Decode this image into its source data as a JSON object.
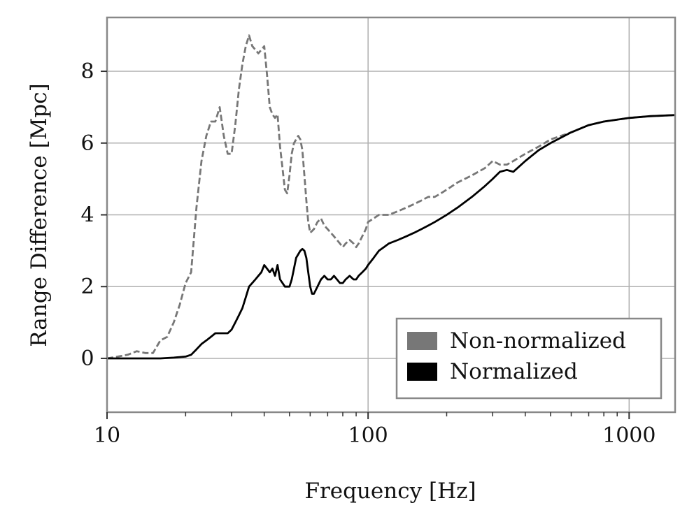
{
  "chart_data": {
    "type": "line",
    "xlabel": "Frequency [Hz]",
    "ylabel": "Range Difference [Mpc]",
    "xscale": "log",
    "xlim": [
      10,
      1500
    ],
    "ylim": [
      -1.5,
      9.5
    ],
    "xticks": [
      10,
      100,
      1000
    ],
    "xtick_labels": [
      "10",
      "100",
      "1000"
    ],
    "yticks": [
      0,
      2,
      4,
      6,
      8
    ],
    "ytick_labels": [
      "0",
      "2",
      "4",
      "6",
      "8"
    ],
    "grid": true,
    "legend_position": "lower-right",
    "series": [
      {
        "name": "Non-normalized",
        "color": "#777777",
        "style": "dashed",
        "x": [
          10,
          11,
          12,
          13,
          14,
          15,
          16,
          17,
          18,
          19,
          20,
          21,
          22,
          23,
          24,
          25,
          26,
          27,
          28,
          29,
          30,
          31,
          32,
          33,
          34,
          35,
          36,
          37,
          38,
          39,
          40,
          41,
          42,
          43,
          44,
          45,
          46,
          47,
          48,
          49,
          50,
          51,
          52,
          53,
          54,
          55,
          56,
          57,
          58,
          59,
          60,
          62,
          64,
          66,
          68,
          70,
          72,
          74,
          76,
          78,
          80,
          82,
          85,
          88,
          90,
          92,
          95,
          98,
          100,
          105,
          110,
          115,
          120,
          130,
          140,
          150,
          160,
          170,
          180,
          190,
          200,
          220,
          250,
          280,
          300,
          320,
          340,
          360,
          400,
          450,
          500,
          600,
          700,
          800,
          1000,
          1200,
          1500
        ],
        "y": [
          0.0,
          0.05,
          0.1,
          0.2,
          0.15,
          0.15,
          0.5,
          0.6,
          1.0,
          1.5,
          2.1,
          2.4,
          4.2,
          5.5,
          6.2,
          6.6,
          6.6,
          7.0,
          6.2,
          5.7,
          5.7,
          6.5,
          7.5,
          8.2,
          8.7,
          9.0,
          8.7,
          8.6,
          8.5,
          8.6,
          8.7,
          7.9,
          7.0,
          6.8,
          6.7,
          6.8,
          5.9,
          5.3,
          4.7,
          4.6,
          5.1,
          5.7,
          6.0,
          6.1,
          6.2,
          6.1,
          5.8,
          5.1,
          4.4,
          3.8,
          3.5,
          3.6,
          3.8,
          3.9,
          3.7,
          3.6,
          3.5,
          3.4,
          3.3,
          3.2,
          3.1,
          3.2,
          3.3,
          3.2,
          3.1,
          3.2,
          3.4,
          3.6,
          3.8,
          3.9,
          4.0,
          4.0,
          4.0,
          4.1,
          4.2,
          4.3,
          4.4,
          4.5,
          4.5,
          4.6,
          4.7,
          4.9,
          5.1,
          5.3,
          5.5,
          5.4,
          5.4,
          5.5,
          5.7,
          5.9,
          6.1,
          6.3,
          6.5,
          6.6,
          6.7,
          6.75,
          6.78
        ]
      },
      {
        "name": "Normalized",
        "color": "#000000",
        "style": "solid",
        "x": [
          10,
          12,
          14,
          16,
          18,
          20,
          21,
          22,
          23,
          24,
          25,
          26,
          27,
          28,
          29,
          30,
          31,
          32,
          33,
          34,
          35,
          36,
          37,
          38,
          39,
          40,
          41,
          42,
          43,
          44,
          45,
          46,
          47,
          48,
          49,
          50,
          51,
          52,
          53,
          54,
          55,
          56,
          57,
          58,
          59,
          60,
          61,
          62,
          64,
          66,
          68,
          70,
          72,
          74,
          76,
          78,
          80,
          82,
          85,
          88,
          90,
          92,
          95,
          98,
          100,
          105,
          110,
          115,
          120,
          130,
          140,
          150,
          160,
          170,
          180,
          190,
          200,
          220,
          250,
          280,
          300,
          320,
          340,
          360,
          400,
          450,
          500,
          600,
          700,
          800,
          1000,
          1200,
          1500
        ],
        "y": [
          0.0,
          0.0,
          0.0,
          0.0,
          0.02,
          0.05,
          0.1,
          0.25,
          0.4,
          0.5,
          0.6,
          0.7,
          0.7,
          0.7,
          0.7,
          0.8,
          1.0,
          1.2,
          1.4,
          1.7,
          2.0,
          2.1,
          2.2,
          2.3,
          2.4,
          2.6,
          2.5,
          2.4,
          2.5,
          2.3,
          2.6,
          2.2,
          2.1,
          2.0,
          2.0,
          2.0,
          2.2,
          2.5,
          2.8,
          2.9,
          3.0,
          3.05,
          3.0,
          2.8,
          2.4,
          2.0,
          1.8,
          1.8,
          2.0,
          2.2,
          2.3,
          2.2,
          2.2,
          2.3,
          2.2,
          2.1,
          2.1,
          2.2,
          2.3,
          2.2,
          2.2,
          2.3,
          2.4,
          2.5,
          2.6,
          2.8,
          3.0,
          3.1,
          3.2,
          3.3,
          3.4,
          3.5,
          3.6,
          3.7,
          3.8,
          3.9,
          4.0,
          4.2,
          4.5,
          4.8,
          5.0,
          5.2,
          5.25,
          5.2,
          5.5,
          5.8,
          6.0,
          6.3,
          6.5,
          6.6,
          6.7,
          6.75,
          6.78
        ]
      }
    ]
  },
  "colors": {
    "axes_frame": "#888888",
    "grid": "#b0b0b0",
    "legend_frame": "#888888"
  }
}
